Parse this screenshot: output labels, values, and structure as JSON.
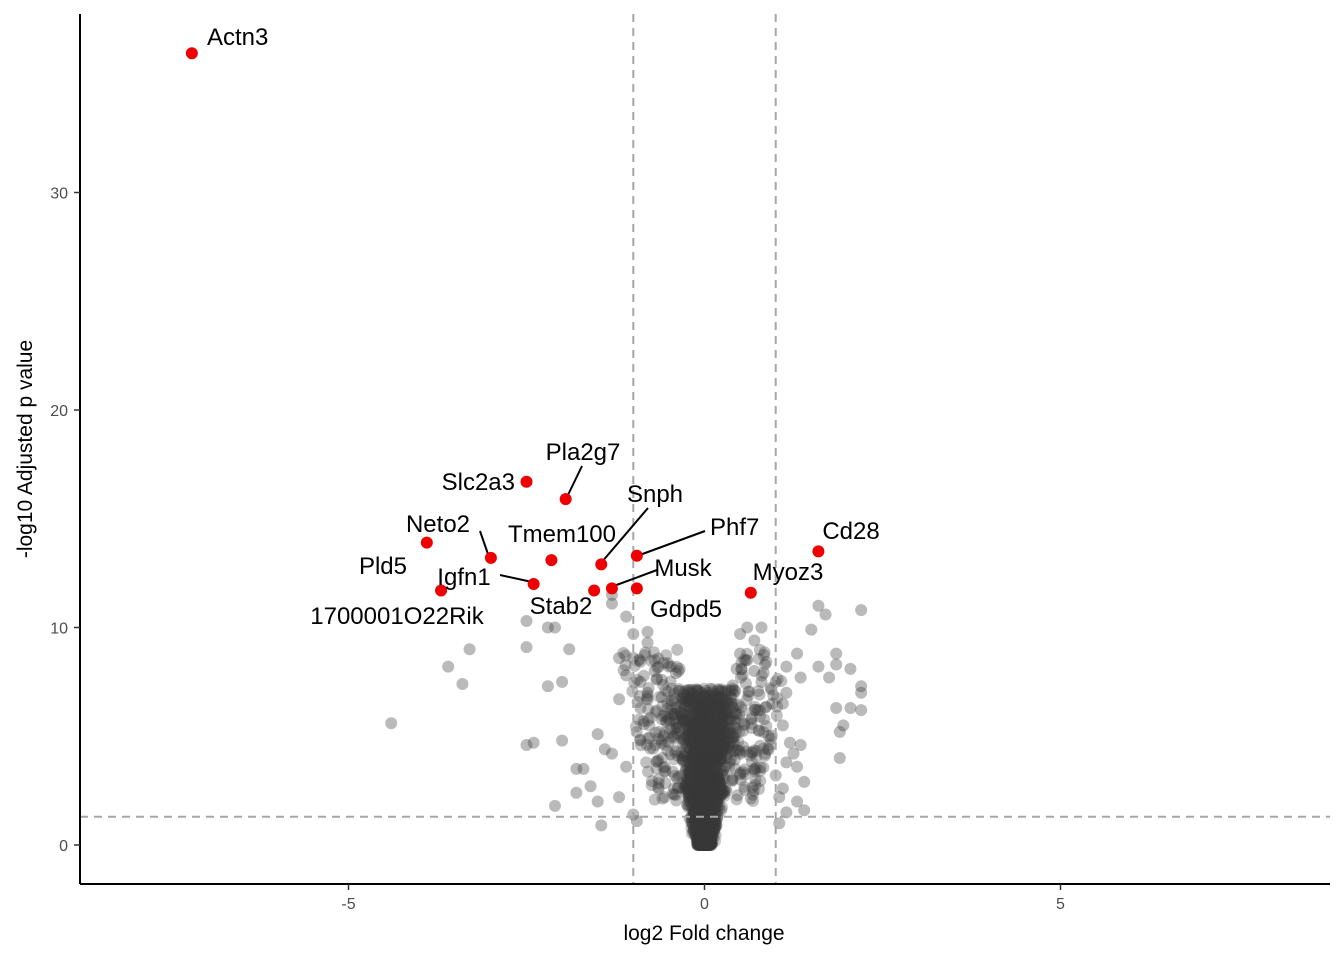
{
  "chart_data": {
    "type": "scatter",
    "subtype": "volcano",
    "xlabel": "log2 Fold change",
    "ylabel": "-log10 Adjusted p value",
    "xlim": [
      -8.8,
      8.8
    ],
    "ylim": [
      -1.8,
      38.5
    ],
    "x_ticks": [
      -5,
      0,
      5
    ],
    "x_tick_labels": [
      "-5",
      "0",
      "5"
    ],
    "y_ticks": [
      0,
      10,
      20,
      30
    ],
    "y_tick_labels": [
      "0",
      "10",
      "20",
      "30"
    ],
    "grid": false,
    "thresholds": {
      "log2fc": [
        -1,
        1
      ],
      "neg_log10_padj": 1.3
    },
    "colors": {
      "significant": "#ee0000",
      "other": "#3a3a3a",
      "threshold_line": "#a6a6a6"
    },
    "background_points": [
      [
        -4.4,
        5.6
      ],
      [
        -3.6,
        8.2
      ],
      [
        -3.4,
        7.4
      ],
      [
        -3.3,
        9.0
      ],
      [
        -2.5,
        10.3
      ],
      [
        -2.5,
        9.1
      ],
      [
        -2.5,
        4.6
      ],
      [
        -2.4,
        4.7
      ],
      [
        -2.2,
        10.0
      ],
      [
        -2.1,
        10.0
      ],
      [
        -2.2,
        7.3
      ],
      [
        -2.0,
        7.5
      ],
      [
        -2.0,
        4.8
      ],
      [
        -1.9,
        9.0
      ],
      [
        -1.8,
        3.5
      ],
      [
        -1.7,
        3.5
      ],
      [
        -1.8,
        2.4
      ],
      [
        -1.6,
        2.7
      ],
      [
        -2.1,
        1.8
      ],
      [
        -1.5,
        2.0
      ],
      [
        -1.4,
        4.4
      ],
      [
        -1.3,
        4.2
      ],
      [
        -1.3,
        11.5
      ],
      [
        -1.3,
        11.1
      ],
      [
        -1.1,
        10.5
      ],
      [
        -1.2,
        8.6
      ],
      [
        -1.1,
        7.8
      ],
      [
        -1.0,
        9.7
      ],
      [
        -1.0,
        8.6
      ],
      [
        -1.5,
        5.1
      ],
      [
        -1.2,
        6.7
      ],
      [
        -1.1,
        3.6
      ],
      [
        -1.2,
        2.2
      ],
      [
        -1.0,
        1.4
      ],
      [
        -0.95,
        1.1
      ],
      [
        -1.45,
        0.9
      ],
      [
        -0.8,
        9.8
      ],
      [
        -0.8,
        9.3
      ],
      [
        -0.7,
        8.5
      ],
      [
        -0.7,
        8.0
      ],
      [
        -0.6,
        7.6
      ],
      [
        -0.5,
        8.2
      ],
      [
        -0.4,
        7.9
      ],
      [
        -0.35,
        8.1
      ],
      [
        -0.9,
        7.5
      ],
      [
        -0.8,
        7.0
      ],
      [
        -0.9,
        6.3
      ],
      [
        -0.6,
        6.8
      ],
      [
        0.5,
        9.7
      ],
      [
        0.6,
        10.0
      ],
      [
        0.5,
        8.8
      ],
      [
        0.6,
        8.5
      ],
      [
        0.7,
        9.4
      ],
      [
        0.8,
        10.0
      ],
      [
        0.45,
        8.1
      ],
      [
        0.7,
        8.0
      ],
      [
        0.85,
        8.3
      ],
      [
        0.8,
        7.5
      ],
      [
        0.75,
        6.2
      ],
      [
        0.9,
        5.0
      ],
      [
        1.0,
        7.5
      ],
      [
        0.95,
        6.5
      ],
      [
        1.1,
        5.5
      ],
      [
        1.2,
        4.7
      ],
      [
        1.0,
        3.2
      ],
      [
        1.05,
        2.2
      ],
      [
        1.15,
        1.5
      ],
      [
        1.05,
        1.0
      ],
      [
        1.4,
        2.9
      ],
      [
        1.3,
        3.6
      ],
      [
        1.25,
        4.2
      ],
      [
        1.15,
        3.8
      ],
      [
        1.35,
        4.6
      ],
      [
        1.4,
        1.6
      ],
      [
        1.1,
        2.6
      ],
      [
        1.3,
        2.0
      ],
      [
        1.35,
        7.7
      ],
      [
        1.3,
        8.8
      ],
      [
        1.15,
        7.0
      ],
      [
        1.15,
        8.2
      ],
      [
        1.1,
        6.5
      ],
      [
        1.5,
        9.9
      ],
      [
        1.6,
        11.0
      ],
      [
        1.7,
        10.6
      ],
      [
        1.75,
        7.7
      ],
      [
        1.85,
        6.3
      ],
      [
        1.95,
        5.5
      ],
      [
        1.9,
        5.2
      ],
      [
        1.9,
        4.0
      ],
      [
        1.85,
        8.8
      ],
      [
        1.85,
        8.3
      ],
      [
        2.05,
        8.1
      ],
      [
        1.6,
        8.2
      ],
      [
        2.2,
        10.8
      ],
      [
        2.2,
        7.3
      ],
      [
        2.2,
        7.0
      ],
      [
        2.2,
        6.2
      ],
      [
        2.05,
        6.3
      ]
    ],
    "highlighted": [
      {
        "gene": "Actn3",
        "x": -7.2,
        "y": 36.4
      },
      {
        "gene": "Slc2a3",
        "x": -2.5,
        "y": 16.7
      },
      {
        "gene": "Pla2g7",
        "x": -1.95,
        "y": 15.9
      },
      {
        "gene": "Snph",
        "x": -1.45,
        "y": 12.9
      },
      {
        "gene": "Phf7",
        "x": -0.95,
        "y": 13.3
      },
      {
        "gene": "Neto2",
        "x": -3.9,
        "y": 13.9
      },
      {
        "gene": "Tmem100",
        "x": -2.15,
        "y": 13.1
      },
      {
        "gene": "Pld5",
        "x": -3.0,
        "y": 13.2
      },
      {
        "gene": "Igfn1",
        "x": -2.4,
        "y": 12.0
      },
      {
        "gene": "1700001O22Rik",
        "x": -3.7,
        "y": 11.7
      },
      {
        "gene": "Stab2",
        "x": -1.55,
        "y": 11.7
      },
      {
        "gene": "Musk",
        "x": -1.3,
        "y": 11.8
      },
      {
        "gene": "Gdpd5",
        "x": -0.95,
        "y": 11.8
      },
      {
        "gene": "Myoz3",
        "x": 0.65,
        "y": 11.6
      },
      {
        "gene": "Cd28",
        "x": 1.6,
        "y": 13.5
      }
    ]
  }
}
